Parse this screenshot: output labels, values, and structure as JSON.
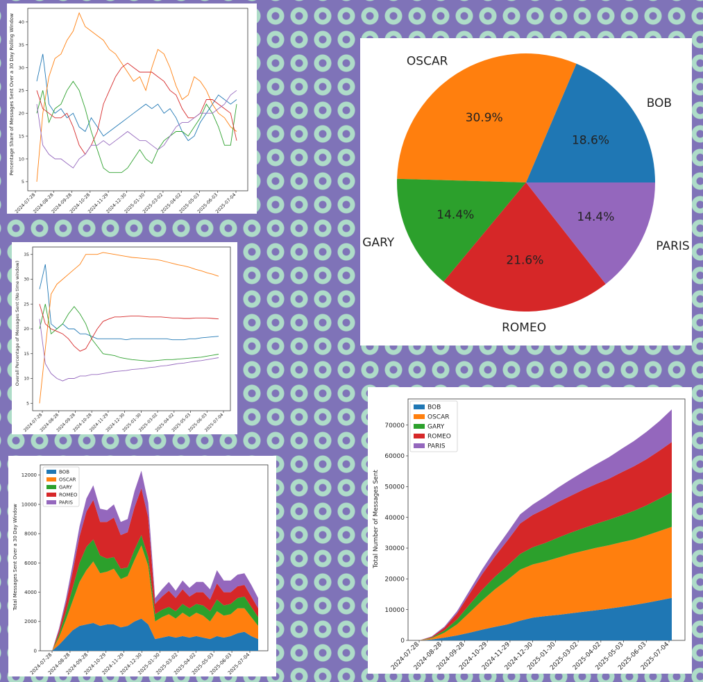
{
  "colors": {
    "BOB": "#1f77b4",
    "OSCAR": "#ff7f0e",
    "GARY": "#2ca02c",
    "ROMEO": "#d62728",
    "PARIS": "#9467bd"
  },
  "chart_data": [
    {
      "id": "p1",
      "type": "line",
      "ylabel": "Percentage Share of Messages Sent Over a 30 Day Rolling Window",
      "xlabel": "",
      "x_ticks": [
        "2024-07-28",
        "2024-08-28",
        "2024-09-28",
        "2024-10-28",
        "2024-11-29",
        "2024-12-30",
        "2025-01-30",
        "2025-03-02",
        "2025-04-02",
        "2025-05-03",
        "2025-06-03",
        "2025-07-04"
      ],
      "y_ticks": [
        5,
        10,
        15,
        20,
        25,
        30,
        35,
        40
      ],
      "ylim": [
        3,
        43
      ],
      "legend": "none",
      "series": [
        {
          "name": "BOB",
          "values": [
            27,
            33,
            22,
            20,
            21,
            19,
            20,
            17,
            16,
            19,
            17,
            15,
            16,
            17,
            18,
            19,
            20,
            21,
            22,
            21,
            22,
            20,
            21,
            19,
            16,
            14,
            15,
            18,
            20,
            22,
            24,
            23,
            22,
            23
          ]
        },
        {
          "name": "OSCAR",
          "values": [
            5,
            20,
            28,
            32,
            33,
            36,
            38,
            42,
            39,
            38,
            37,
            36,
            34,
            33,
            31,
            29,
            27,
            28,
            25,
            30,
            34,
            33,
            30,
            26,
            23,
            24,
            28,
            27,
            25,
            22,
            20,
            19,
            17,
            16
          ]
        },
        {
          "name": "GARY",
          "values": [
            20,
            25,
            18,
            21,
            22,
            25,
            27,
            25,
            21,
            16,
            12,
            8,
            7,
            7,
            7,
            8,
            10,
            12,
            10,
            9,
            12,
            14,
            15,
            16,
            16,
            15,
            17,
            19,
            22,
            20,
            17,
            13,
            13,
            22
          ]
        },
        {
          "name": "ROMEO",
          "values": [
            25,
            21,
            20,
            19,
            19,
            20,
            17,
            13,
            11,
            13,
            16,
            22,
            25,
            28,
            30,
            31,
            30,
            29,
            29,
            29,
            28,
            27,
            25,
            24,
            21,
            19,
            19,
            20,
            23,
            23,
            22,
            21,
            20,
            14
          ]
        },
        {
          "name": "PARIS",
          "values": [
            22,
            13,
            11,
            10,
            10,
            9,
            8,
            10,
            11,
            13,
            13,
            14,
            13,
            14,
            15,
            16,
            15,
            14,
            14,
            13,
            12,
            13,
            15,
            17,
            18,
            18,
            19,
            20,
            20,
            20,
            21,
            22,
            24,
            25
          ]
        }
      ]
    },
    {
      "id": "p2",
      "type": "line",
      "ylabel": "Overall Percentage of Messages Sent (No time window)",
      "xlabel": "",
      "x_ticks": [
        "2024-07-28",
        "2024-08-28",
        "2024-09-28",
        "2024-10-28",
        "2024-11-29",
        "2024-12-30",
        "2025-01-30",
        "2025-03-02",
        "2025-04-02",
        "2025-05-03",
        "2025-06-03",
        "2025-07-04"
      ],
      "y_ticks": [
        5,
        10,
        15,
        20,
        25,
        30,
        35
      ],
      "ylim": [
        3.5,
        36.5
      ],
      "legend": "none",
      "series": [
        {
          "name": "BOB",
          "values": [
            28,
            33,
            21,
            20,
            21,
            20,
            20,
            19,
            19,
            18.5,
            18,
            18,
            18,
            18,
            18,
            17.8,
            18,
            18,
            18,
            18,
            18,
            18,
            18,
            17.8,
            17.8,
            17.8,
            18,
            18,
            18.2,
            18.3,
            18.4,
            18.5
          ]
        },
        {
          "name": "OSCAR",
          "values": [
            5,
            16,
            27,
            29,
            30,
            31,
            32,
            33,
            35,
            35,
            35,
            35.4,
            35.2,
            35,
            34.8,
            34.6,
            34.4,
            34.3,
            34.2,
            34.1,
            34,
            33.8,
            33.5,
            33.2,
            32.9,
            32.7,
            32.4,
            32,
            31.7,
            31.3,
            31,
            30.6
          ]
        },
        {
          "name": "GARY",
          "values": [
            20,
            25,
            19,
            20,
            21,
            23,
            24.5,
            23,
            21,
            18,
            16.5,
            15,
            14.8,
            14.6,
            14.2,
            14,
            13.8,
            13.7,
            13.6,
            13.5,
            13.6,
            13.7,
            13.8,
            13.8,
            13.9,
            14,
            14.1,
            14.2,
            14.3,
            14.5,
            14.7,
            14.9
          ]
        },
        {
          "name": "ROMEO",
          "values": [
            25,
            21,
            20,
            19.5,
            19,
            18,
            16.5,
            15.5,
            16,
            18,
            20,
            21.5,
            22,
            22.4,
            22.4,
            22.5,
            22.6,
            22.6,
            22.5,
            22.4,
            22.4,
            22.4,
            22.3,
            22.2,
            22.2,
            22.1,
            22.1,
            22.2,
            22.2,
            22.2,
            22.1,
            22
          ]
        },
        {
          "name": "PARIS",
          "values": [
            22,
            13,
            11,
            10,
            9.5,
            10,
            10,
            10.5,
            10.5,
            10.8,
            10.8,
            11,
            11.2,
            11.4,
            11.5,
            11.6,
            11.8,
            11.9,
            12,
            12.2,
            12.3,
            12.5,
            12.6,
            12.8,
            13,
            13.1,
            13.3,
            13.5,
            13.6,
            13.8,
            14,
            14.2
          ]
        }
      ]
    },
    {
      "id": "p3",
      "type": "area",
      "ylabel": "Total Messages Sent Over a 30 Day Window",
      "xlabel": "",
      "x_ticks": [
        "2024-07-28",
        "2024-08-28",
        "2024-09-28",
        "2024-10-29",
        "2024-11-29",
        "2024-12-30",
        "2025-01-30",
        "2025-03-02",
        "2025-04-02",
        "2025-05-03",
        "2025-06-03",
        "2025-07-04"
      ],
      "y_ticks": [
        0,
        2000,
        4000,
        6000,
        8000,
        10000,
        12000
      ],
      "ylim": [
        0,
        12700
      ],
      "legend": "top-left",
      "legend_items": [
        "BOB",
        "OSCAR",
        "GARY",
        "ROMEO",
        "PARIS"
      ],
      "series": [
        {
          "name": "BOB",
          "values": [
            0,
            400,
            900,
            1400,
            1700,
            1800,
            1900,
            1700,
            1800,
            1800,
            1600,
            1700,
            2000,
            2200,
            1800,
            800,
            900,
            1000,
            900,
            1000,
            900,
            1000,
            900,
            800,
            1000,
            900,
            1000,
            1200,
            1300,
            1000,
            800
          ]
        },
        {
          "name": "OSCAR",
          "values": [
            0,
            500,
            1200,
            2000,
            3000,
            3700,
            4200,
            3600,
            3600,
            3800,
            3300,
            3400,
            4200,
            5000,
            4000,
            1200,
            1400,
            1500,
            1300,
            1600,
            1400,
            1600,
            1500,
            1200,
            1700,
            1500,
            1500,
            1700,
            1600,
            1300,
            900
          ]
        },
        {
          "name": "GARY",
          "values": [
            0,
            200,
            500,
            900,
            1300,
            1600,
            1500,
            1200,
            900,
            800,
            700,
            600,
            700,
            700,
            600,
            500,
            500,
            500,
            500,
            600,
            600,
            600,
            700,
            700,
            800,
            700,
            700,
            700,
            800,
            700,
            600
          ]
        },
        {
          "name": "ROMEO",
          "values": [
            0,
            250,
            600,
            1100,
            1800,
            2400,
            2700,
            2300,
            2500,
            2700,
            2300,
            2400,
            2900,
            3200,
            2700,
            700,
            900,
            1100,
            900,
            1000,
            800,
            800,
            900,
            800,
            1100,
            900,
            800,
            800,
            800,
            700,
            600
          ]
        },
        {
          "name": "PARIS",
          "values": [
            0,
            150,
            300,
            500,
            700,
            900,
            1000,
            900,
            800,
            900,
            900,
            900,
            1100,
            1200,
            1000,
            400,
            500,
            600,
            500,
            600,
            600,
            700,
            700,
            700,
            900,
            800,
            800,
            800,
            800,
            800,
            700
          ]
        }
      ]
    },
    {
      "id": "p4",
      "type": "pie",
      "categories": [
        "BOB",
        "OSCAR",
        "GARY",
        "ROMEO",
        "PARIS"
      ],
      "values": [
        18.6,
        30.9,
        14.4,
        21.6,
        14.4
      ],
      "labels": [
        "18.6%",
        "30.9%",
        "14.4%",
        "21.6%",
        "14.4%"
      ]
    },
    {
      "id": "p5",
      "type": "area",
      "ylabel": "Total Number of Messages Sent",
      "xlabel": "",
      "x_ticks": [
        "2024-07-28",
        "2024-08-28",
        "2024-09-28",
        "2024-10-29",
        "2024-11-29",
        "2024-12-30",
        "2025-01-30",
        "2025-03-02",
        "2025-04-02",
        "2025-05-03",
        "2025-06-03",
        "2025-07-04"
      ],
      "y_ticks": [
        0,
        10000,
        20000,
        30000,
        40000,
        50000,
        60000,
        70000
      ],
      "ylim": [
        0,
        78500
      ],
      "legend": "top-left",
      "legend_items": [
        "BOB",
        "OSCAR",
        "GARY",
        "ROMEO",
        "PARIS"
      ],
      "series": [
        {
          "name": "BOB",
          "values": [
            0,
            300,
            900,
            1600,
            2500,
            3500,
            4400,
            5200,
            6400,
            7400,
            7900,
            8300,
            8800,
            9300,
            9800,
            10300,
            10900,
            11500,
            12200,
            13000,
            13800
          ]
        },
        {
          "name": "OSCAR",
          "values": [
            0,
            400,
            1600,
            3600,
            6600,
            9500,
            12200,
            14500,
            16600,
            17300,
            17800,
            18600,
            19300,
            19800,
            20300,
            20600,
            21000,
            21300,
            21900,
            22500,
            23100
          ]
        },
        {
          "name": "GARY",
          "values": [
            0,
            200,
            700,
            1600,
            2600,
            3500,
            4100,
            4600,
            5100,
            5600,
            6000,
            6500,
            6900,
            7400,
            7800,
            8300,
            8700,
            9300,
            9800,
            10500,
            11200
          ]
        },
        {
          "name": "ROMEO",
          "values": [
            0,
            250,
            900,
            2000,
            3500,
            5100,
            6600,
            8200,
            9900,
            10500,
            11100,
            11600,
            12000,
            12500,
            12900,
            13300,
            14000,
            14500,
            15000,
            15600,
            16400
          ]
        },
        {
          "name": "PARIS",
          "values": [
            0,
            150,
            400,
            700,
            1100,
            1600,
            2100,
            2600,
            3000,
            3400,
            4000,
            4700,
            5300,
            5800,
            6400,
            7000,
            7600,
            8200,
            8900,
            9600,
            10600
          ]
        }
      ]
    }
  ]
}
